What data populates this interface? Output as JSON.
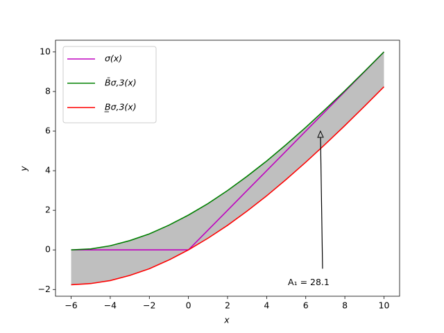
{
  "chart_data": {
    "type": "line",
    "x": [
      -6,
      -5,
      -4,
      -3,
      -2,
      -1,
      0,
      1,
      2,
      3,
      4,
      5,
      6,
      7,
      8,
      9,
      10
    ],
    "series": [
      {
        "name": "σ(x)",
        "color": "#bf00bf",
        "values": [
          0,
          0,
          0,
          0,
          0,
          0,
          0,
          1,
          2,
          3,
          4,
          5,
          6,
          7,
          8,
          9,
          10
        ]
      },
      {
        "name": "B̄σ,3(x)",
        "color": "#008000",
        "values": [
          0,
          0.05,
          0.21,
          0.47,
          0.81,
          1.25,
          1.76,
          2.34,
          3.0,
          3.72,
          4.49,
          5.32,
          6.19,
          7.1,
          8.04,
          9.01,
          10
        ]
      },
      {
        "name": "B̲σ,3(x)",
        "color": "#ff0000",
        "values": [
          -1.76,
          -1.7,
          -1.55,
          -1.29,
          -0.95,
          -0.51,
          0,
          0.59,
          1.24,
          1.96,
          2.73,
          3.56,
          4.43,
          5.34,
          6.28,
          7.25,
          8.24
        ]
      }
    ],
    "fill_color": "#bfbfbf",
    "xlabel": "x",
    "ylabel": "y",
    "xlim": [
      -6.8,
      10.8
    ],
    "ylim": [
      -2.34,
      10.59
    ],
    "xticks": [
      {
        "value": -6,
        "label": "−6"
      },
      {
        "value": -4,
        "label": "−4"
      },
      {
        "value": -2,
        "label": "−2"
      },
      0,
      2,
      4,
      6,
      8,
      10
    ],
    "yticks": [
      {
        "value": -2,
        "label": "−2"
      },
      0,
      2,
      4,
      6,
      8,
      10
    ],
    "legend": "upper left",
    "annotation": {
      "text": "A₁ = 28.1",
      "xy": [
        6.75,
        6.0
      ],
      "xytext": [
        6.15,
        -1.65
      ]
    }
  }
}
